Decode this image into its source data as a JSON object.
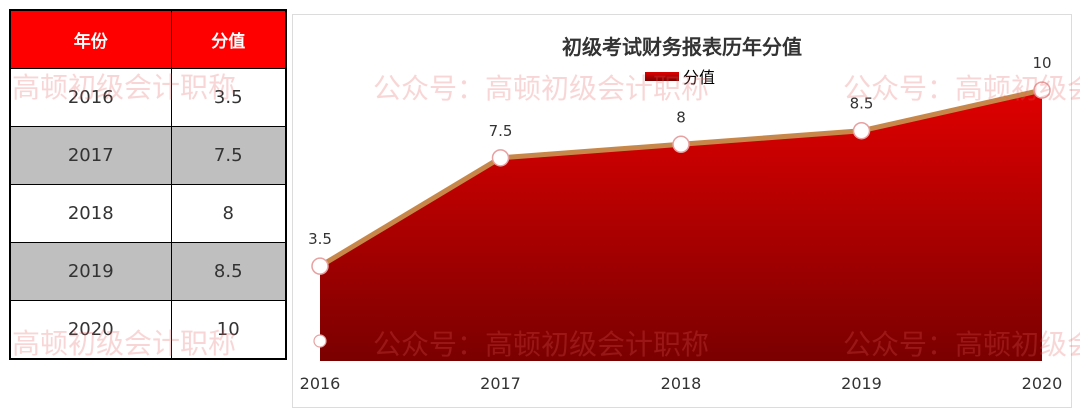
{
  "table": {
    "headers": [
      "年份",
      "分值"
    ],
    "rows": [
      [
        "2016",
        "3.5"
      ],
      [
        "2017",
        "7.5"
      ],
      [
        "2018",
        "8"
      ],
      [
        "2019",
        "8.5"
      ],
      [
        "2020",
        "10"
      ]
    ]
  },
  "colors": {
    "header_bg": "#ff0000",
    "alt_row_bg": "#bfbfbf",
    "area_top": "#e00000",
    "area_bottom": "#7a0000",
    "line": "#c8874a",
    "marker_stroke": "#e8a0a0"
  },
  "watermarks": {
    "left": "高顿初级会计职称",
    "chart": "公众号：高顿初级会计职称"
  },
  "chart_data": {
    "type": "area",
    "title": "初级考试财务报表历年分值",
    "categories": [
      "2016",
      "2017",
      "2018",
      "2019",
      "2020"
    ],
    "series": [
      {
        "name": "分值",
        "values": [
          3.5,
          7.5,
          8,
          8.5,
          10
        ]
      }
    ],
    "data_labels": [
      "3.5",
      "7.5",
      "8",
      "8.5",
      "10"
    ],
    "legend_position": "top-center",
    "grid": false,
    "ylim": [
      0,
      11
    ]
  }
}
